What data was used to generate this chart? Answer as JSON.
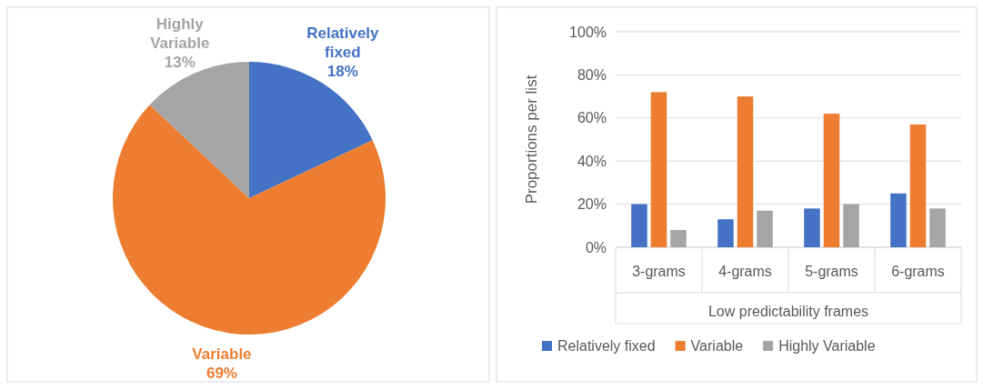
{
  "chart_data": [
    {
      "type": "pie",
      "categories": [
        "Relatively fixed",
        "Variable",
        "Highly Variable"
      ],
      "values": [
        18,
        69,
        13
      ],
      "value_labels": [
        "18%",
        "69%",
        "13%"
      ],
      "colors": [
        "#4472c4",
        "#ed7d31",
        "#a5a5a5"
      ]
    },
    {
      "type": "bar",
      "categories": [
        "3-grams",
        "4-grams",
        "5-grams",
        "6-grams"
      ],
      "xlabel": "Low predictability frames",
      "ylabel": "Proportions  per list",
      "series": [
        {
          "name": "Relatively fixed",
          "color": "#4472c4",
          "values": [
            20,
            13,
            18,
            25
          ]
        },
        {
          "name": "Variable",
          "color": "#ed7d31",
          "values": [
            72,
            70,
            62,
            57
          ]
        },
        {
          "name": "Highly Variable",
          "color": "#a5a5a5",
          "values": [
            8,
            17,
            20,
            18
          ]
        }
      ],
      "ylim": [
        0,
        100
      ],
      "yticks": [
        {
          "value": 0,
          "label": "0%"
        },
        {
          "value": 20,
          "label": "20%"
        },
        {
          "value": 40,
          "label": "40%"
        },
        {
          "value": 60,
          "label": "60%"
        },
        {
          "value": 80,
          "label": "80%"
        },
        {
          "value": 100,
          "label": "100%"
        }
      ],
      "grid": "y",
      "legend": "bottom"
    }
  ]
}
